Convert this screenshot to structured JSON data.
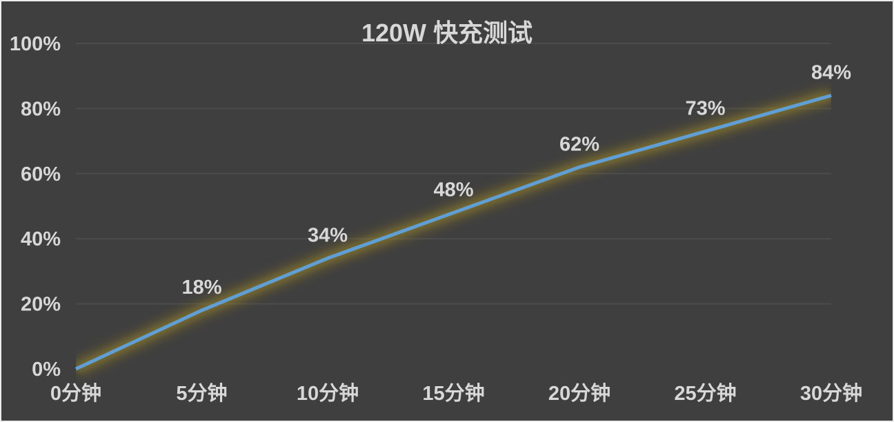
{
  "chart_data": {
    "type": "line",
    "title": "120W 快充测试",
    "categories": [
      "0分钟",
      "5分钟",
      "10分钟",
      "15分钟",
      "20分钟",
      "25分钟",
      "30分钟"
    ],
    "values": [
      0,
      18,
      34,
      48,
      62,
      73,
      84
    ],
    "data_labels": [
      "",
      "18%",
      "34%",
      "48%",
      "62%",
      "73%",
      "84%"
    ],
    "xlabel": "",
    "ylabel": "",
    "y_ticks": [
      {
        "label": "100%",
        "value": 100
      },
      {
        "label": "80%",
        "value": 80
      },
      {
        "label": "60%",
        "value": 60
      },
      {
        "label": "40%",
        "value": 40
      },
      {
        "label": "20%",
        "value": 20
      },
      {
        "label": "0%",
        "value": 0
      }
    ],
    "ylim": [
      0,
      100
    ],
    "grid": "horizontal-major-only-above-zero",
    "legend": "none",
    "colors": {
      "background": "#3F3F3F",
      "frame_border": "#ECECEC",
      "gridline": "#4C4C4C",
      "text": "#D8D8D8",
      "line": "#5F9FD6",
      "glow_outer": "#B89B1E",
      "glow_inner": "#8E7C22"
    }
  }
}
